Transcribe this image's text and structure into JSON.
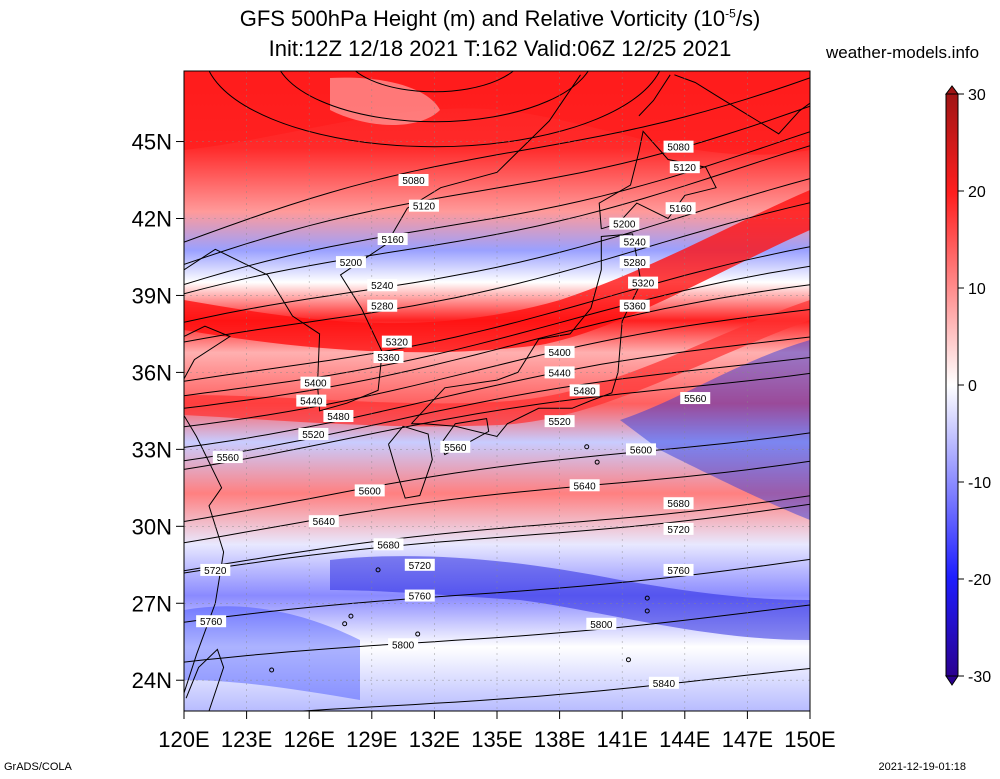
{
  "title": {
    "line1": "GFS 500hPa Height (m) and Relative Vorticity (10",
    "line1_exp": "-5",
    "line1_tail": "/s)",
    "line2": "Init:12Z 12/18 2021 T:162 Valid:06Z 12/25 2021"
  },
  "site": "weather-models.info",
  "footer": {
    "left": "GrADS/COLA",
    "right": "2021-12-19-01:18"
  },
  "axes": {
    "lat_labels": [
      "24N",
      "27N",
      "30N",
      "33N",
      "36N",
      "39N",
      "42N",
      "45N"
    ],
    "lon_labels": [
      "120E",
      "123E",
      "126E",
      "129E",
      "132E",
      "135E",
      "138E",
      "141E",
      "144E",
      "147E",
      "150E"
    ]
  },
  "colorbar": {
    "labels": [
      "30",
      "20",
      "10",
      "0",
      "-10",
      "-20",
      "-30"
    ],
    "colors": [
      "#b01818",
      "#ff1e1e",
      "#ff8a8a",
      "#ffffff",
      "#8a8aff",
      "#1e1eff",
      "#2a0090"
    ]
  },
  "contours": [
    {
      "label": "5080",
      "label_lat": 43.5,
      "label_lon": 131.0
    },
    {
      "label": "5120",
      "label_lat": 42.5,
      "label_lon": 131.5
    },
    {
      "label": "5160",
      "label_lat": 41.2,
      "label_lon": 130.0
    },
    {
      "label": "5200",
      "label_lat": 40.3,
      "label_lon": 128.0
    },
    {
      "label": "5240",
      "label_lat": 39.4,
      "label_lon": 129.5
    },
    {
      "label": "5280",
      "label_lat": 38.6,
      "label_lon": 129.5
    },
    {
      "label": "5320",
      "label_lat": 37.2,
      "label_lon": 130.2
    },
    {
      "label": "5360",
      "label_lat": 36.6,
      "label_lon": 129.8
    },
    {
      "label": "5400",
      "label_lat": 35.6,
      "label_lon": 126.3
    },
    {
      "label": "5440",
      "label_lat": 34.9,
      "label_lon": 126.1
    },
    {
      "label": "5480",
      "label_lat": 34.3,
      "label_lon": 127.4
    },
    {
      "label": "5520",
      "label_lat": 33.6,
      "label_lon": 126.2
    },
    {
      "label": "5560",
      "label_lat": 32.7,
      "label_lon": 122.1
    },
    {
      "label": "5600",
      "label_lat": 31.4,
      "label_lon": 128.9
    },
    {
      "label": "5640",
      "label_lat": 30.2,
      "label_lon": 126.7
    },
    {
      "label": "5680",
      "label_lat": 29.3,
      "label_lon": 129.8
    },
    {
      "label": "5720",
      "label_lat": 28.3,
      "label_lon": 121.5
    },
    {
      "label": "5760",
      "label_lat": 26.3,
      "label_lon": 121.3
    },
    {
      "label": "5800",
      "label_lat": 25.4,
      "label_lon": 130.5
    },
    {
      "label": "5840",
      "label_lat": 23.9,
      "label_lon": 143.0
    }
  ],
  "extra_contour_labels": [
    {
      "label": "5080",
      "lat": 44.8,
      "lon": 143.7
    },
    {
      "label": "5120",
      "lat": 44.0,
      "lon": 144.0
    },
    {
      "label": "5160",
      "lat": 42.4,
      "lon": 143.8
    },
    {
      "label": "5200",
      "lat": 41.8,
      "lon": 141.1
    },
    {
      "label": "5240",
      "lat": 41.1,
      "lon": 141.6
    },
    {
      "label": "5280",
      "lat": 40.3,
      "lon": 141.6
    },
    {
      "label": "5320",
      "lat": 39.5,
      "lon": 142.0
    },
    {
      "label": "5360",
      "lat": 38.6,
      "lon": 141.6
    },
    {
      "label": "5400",
      "lat": 36.8,
      "lon": 138.0
    },
    {
      "label": "5440",
      "lat": 36.0,
      "lon": 138.0
    },
    {
      "label": "5480",
      "lat": 35.3,
      "lon": 139.2
    },
    {
      "label": "5520",
      "lat": 34.1,
      "lon": 138.0
    },
    {
      "label": "5560",
      "lat": 33.1,
      "lon": 133.0
    },
    {
      "label": "5560",
      "lat": 35.0,
      "lon": 144.5
    },
    {
      "label": "5600",
      "lat": 33.0,
      "lon": 141.9
    },
    {
      "label": "5640",
      "lat": 31.6,
      "lon": 139.2
    },
    {
      "label": "5680",
      "lat": 30.9,
      "lon": 143.7
    },
    {
      "label": "5720",
      "lat": 29.9,
      "lon": 143.7
    },
    {
      "label": "5720",
      "lat": 28.5,
      "lon": 131.3
    },
    {
      "label": "5760",
      "lat": 27.3,
      "lon": 131.3
    },
    {
      "label": "5760",
      "lat": 28.3,
      "lon": 143.7
    },
    {
      "label": "5800",
      "lat": 26.2,
      "lon": 140.0
    }
  ]
}
